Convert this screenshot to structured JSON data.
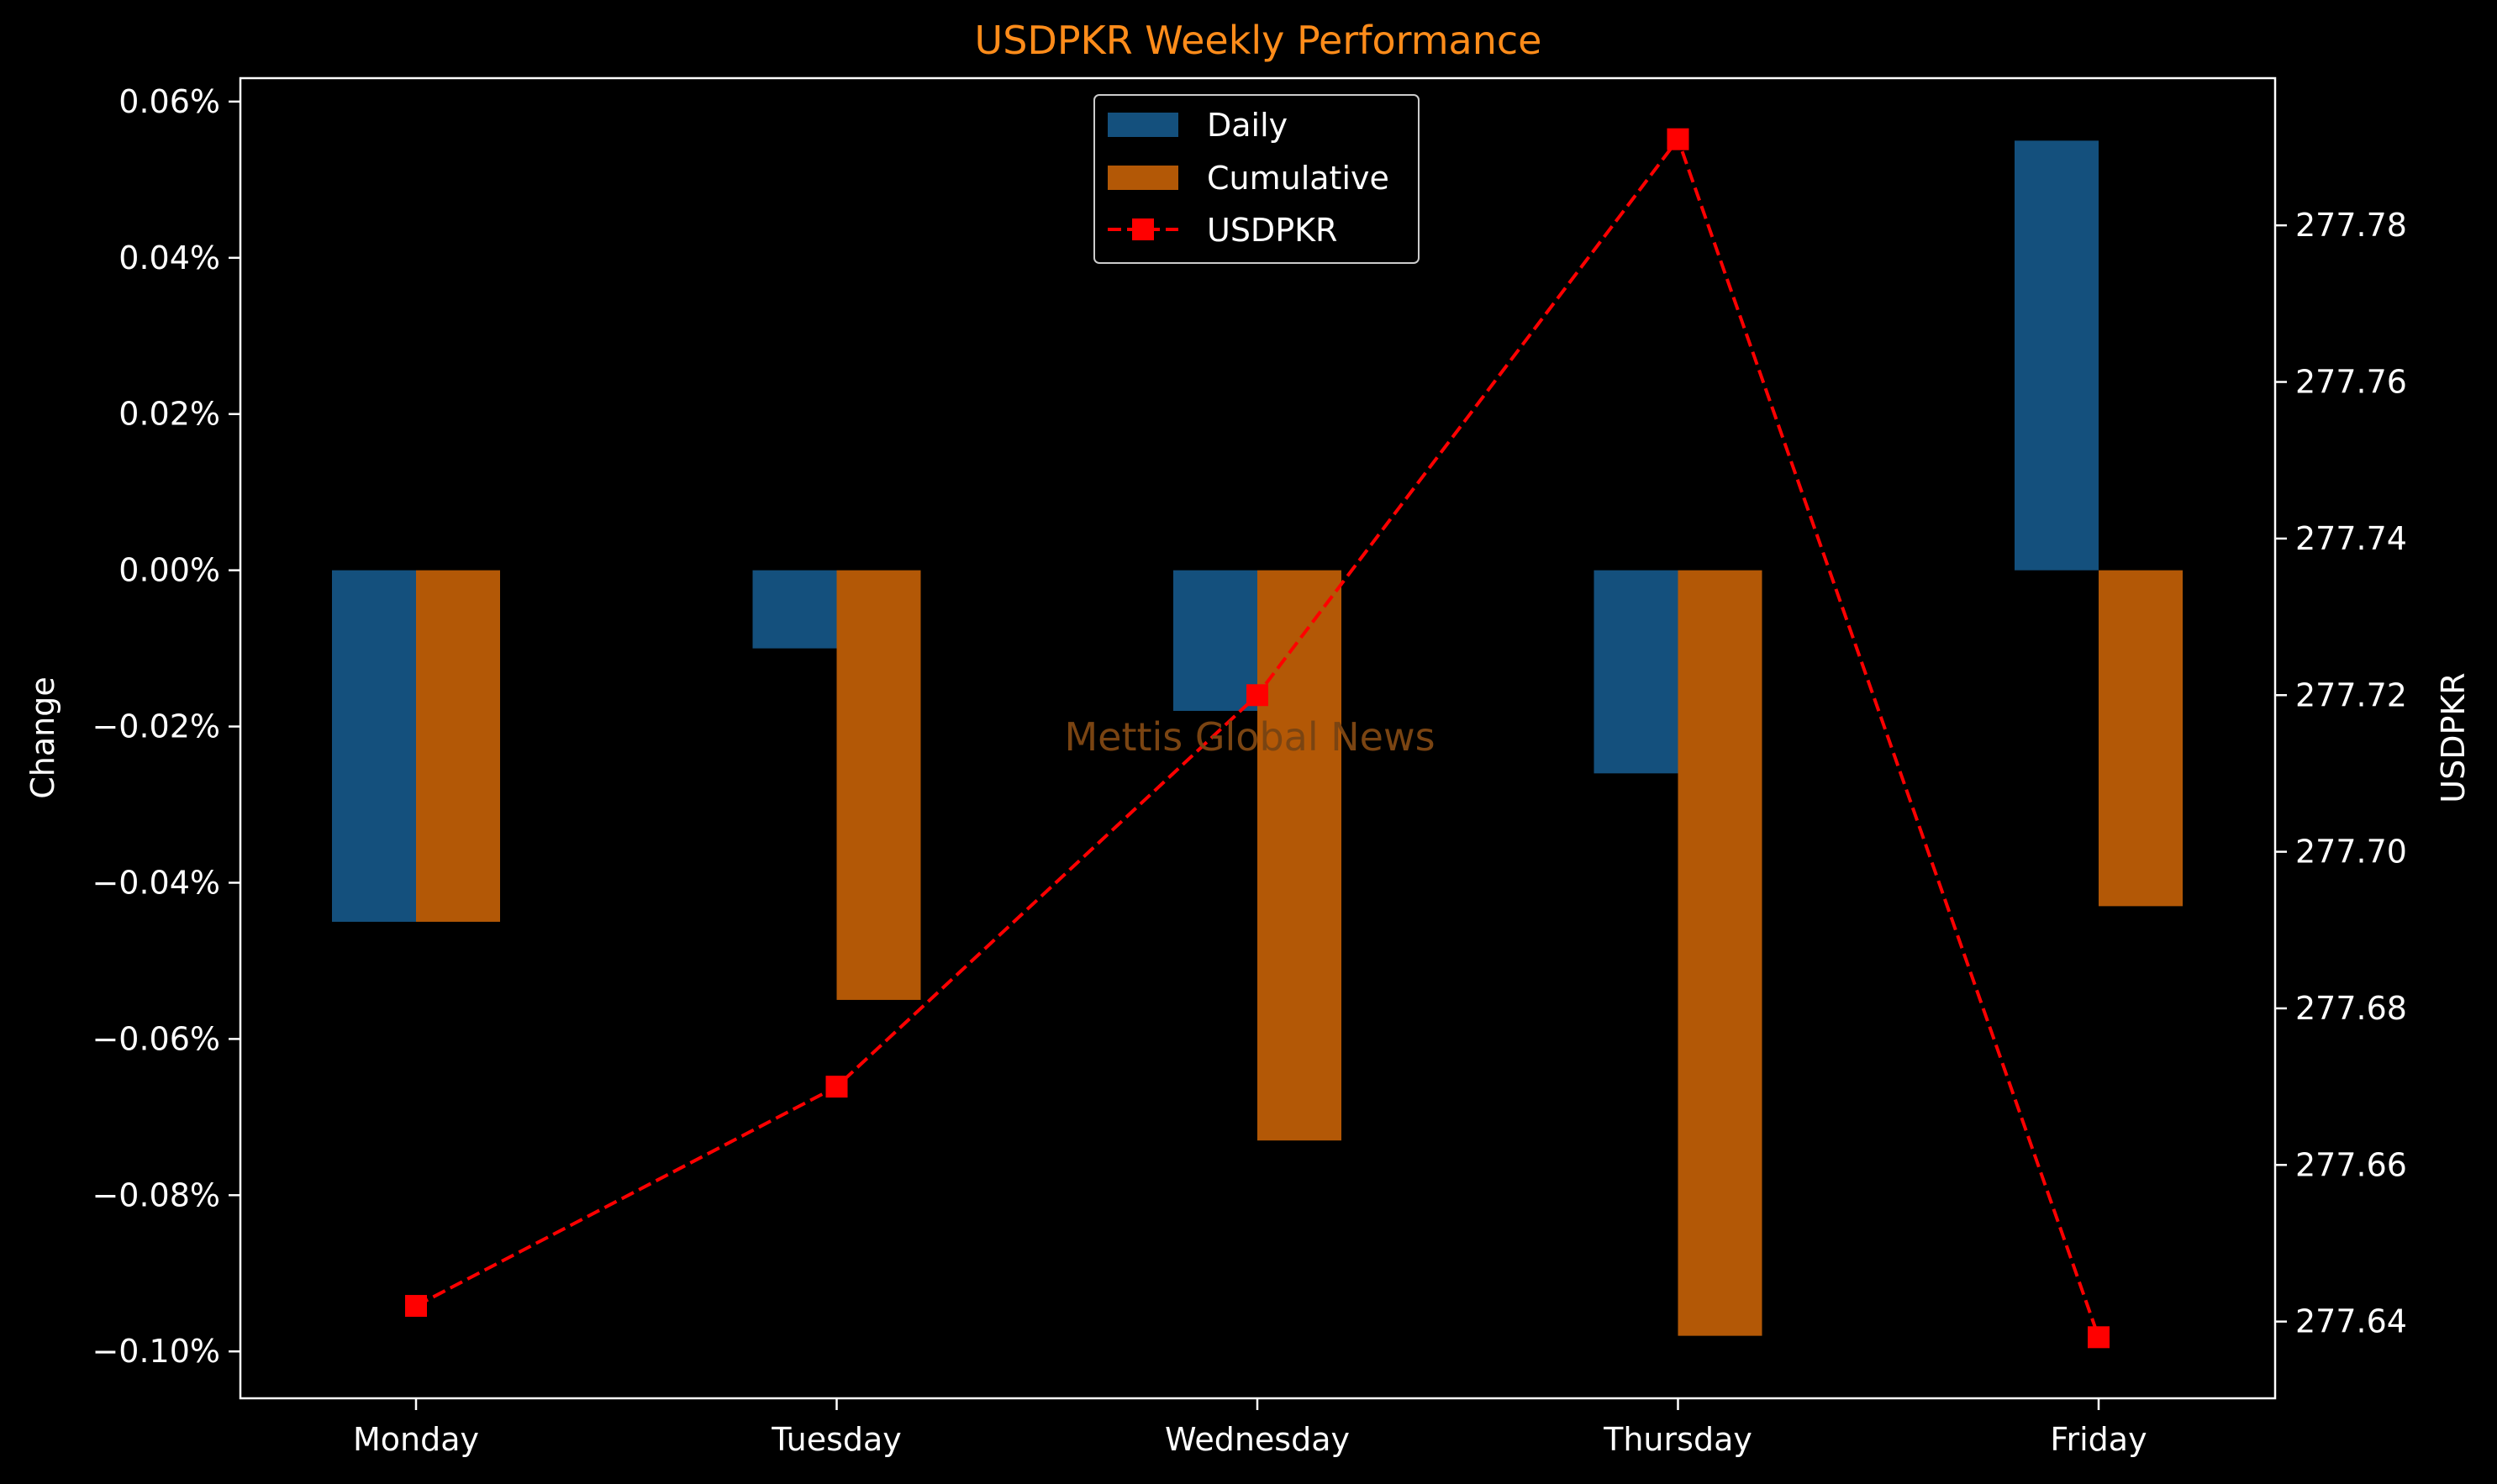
{
  "chart_data": {
    "type": "bar",
    "title": "USDPKR Weekly Performance",
    "ylabel": "Change",
    "y2label": "USDPKR",
    "watermark": "Mettis Global News",
    "categories": [
      "Monday",
      "Tuesday",
      "Wednesday",
      "Thursday",
      "Friday"
    ],
    "series": [
      {
        "name": "Daily",
        "kind": "bar",
        "axis": "left",
        "unit": "%",
        "values": [
          -0.045,
          -0.01,
          -0.018,
          -0.026,
          0.055
        ]
      },
      {
        "name": "Cumulative",
        "kind": "bar",
        "axis": "left",
        "unit": "%",
        "values": [
          -0.045,
          -0.055,
          -0.073,
          -0.098,
          -0.043
        ]
      },
      {
        "name": "USDPKR",
        "kind": "line",
        "axis": "right",
        "style": "dashed-square-markers",
        "values": [
          277.642,
          277.67,
          277.72,
          277.791,
          277.638
        ]
      }
    ],
    "ylim": [
      -0.106,
      0.063
    ],
    "yticks": [
      0.06,
      0.04,
      0.02,
      0.0,
      -0.02,
      -0.04,
      -0.06,
      -0.08,
      -0.1
    ],
    "yticklabels": [
      "0.06%",
      "0.04%",
      "0.02%",
      "0.00%",
      "−0.02%",
      "−0.04%",
      "−0.06%",
      "−0.08%",
      "−0.10%"
    ],
    "y2lim": [
      277.6302,
      277.7988
    ],
    "y2ticks": [
      277.78,
      277.76,
      277.74,
      277.72,
      277.7,
      277.68,
      277.66,
      277.64
    ],
    "y2ticklabels": [
      "277.78",
      "277.76",
      "277.74",
      "277.72",
      "277.70",
      "277.68",
      "277.66",
      "277.64"
    ],
    "legend_position": "top-center",
    "grid": false,
    "colors": {
      "background": "#000000",
      "daily": "#14507d",
      "cumulative": "#b35806",
      "line": "#ff0000",
      "title": "#ff8c1a",
      "watermark": "#7a4412",
      "axes": "#ffffff"
    }
  }
}
